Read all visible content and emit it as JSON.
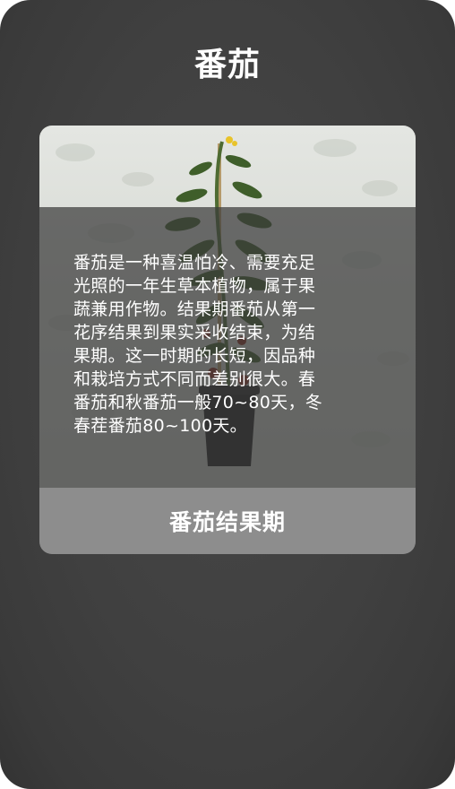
{
  "page": {
    "title": "番茄"
  },
  "card": {
    "image_subject": "tomato-plant-in-pot",
    "description": "番茄是一种喜温怕冷、需要充足\n光照的一年生草本植物，属于果\n蔬兼用作物。结果期番茄从第一\n花序结果到果实采收结束，为结\n果期。这一时期的长短，因品种\n和栽培方式不同而差别很大。春\n番茄和秋番茄一般70~80天，冬\n春茬番茄80~100天。",
    "footer_label": "番茄结果期"
  },
  "colors": {
    "screen_bg": "#404040",
    "overlay": "#3a3a3a",
    "footer_bg": "#8d8d8d",
    "text": "#ffffff"
  }
}
